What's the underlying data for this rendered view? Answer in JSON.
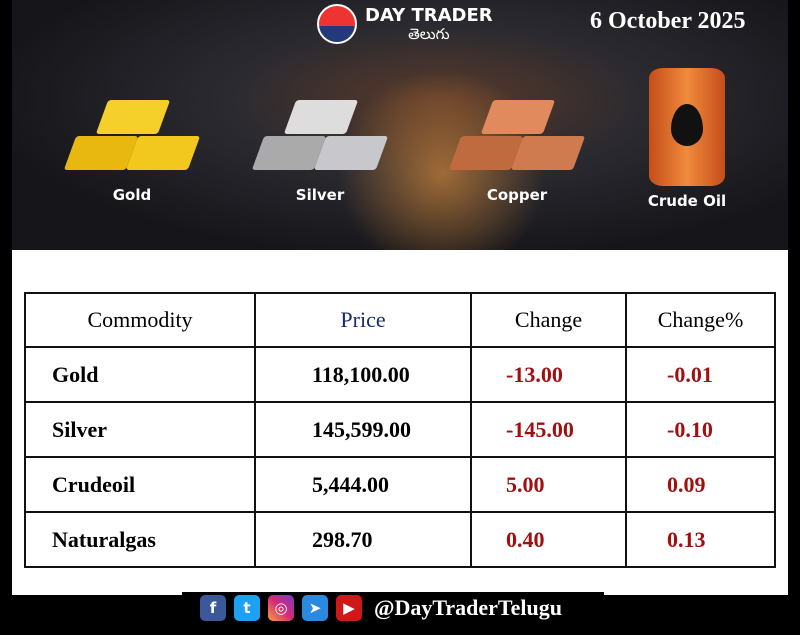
{
  "header": {
    "brand_name": "DAY TRADER",
    "brand_sub": "తెలుగు",
    "date": "6 October 2025"
  },
  "commodities": [
    {
      "label": "Gold",
      "color": "#f2c81e"
    },
    {
      "label": "Silver",
      "color": "#c8c8cc"
    },
    {
      "label": "Copper",
      "color": "#d07a50"
    },
    {
      "label": "Crude Oil",
      "color": "#e8782e"
    }
  ],
  "table": {
    "headers": [
      "Commodity",
      "Price",
      "Change",
      "Change%"
    ],
    "rows": [
      [
        "Gold",
        "118,100.00",
        "-13.00",
        "-0.01"
      ],
      [
        "Silver",
        "145,599.00",
        "-145.00",
        "-0.10"
      ],
      [
        "Crudeoil",
        "5,444.00",
        "5.00",
        "0.09"
      ],
      [
        "Naturalgas",
        "298.70",
        "0.40",
        "0.13"
      ]
    ]
  },
  "footer": {
    "handle": "@DayTraderTelugu",
    "icons": [
      "facebook-icon",
      "twitter-icon",
      "instagram-icon",
      "telegram-icon",
      "youtube-icon"
    ]
  }
}
